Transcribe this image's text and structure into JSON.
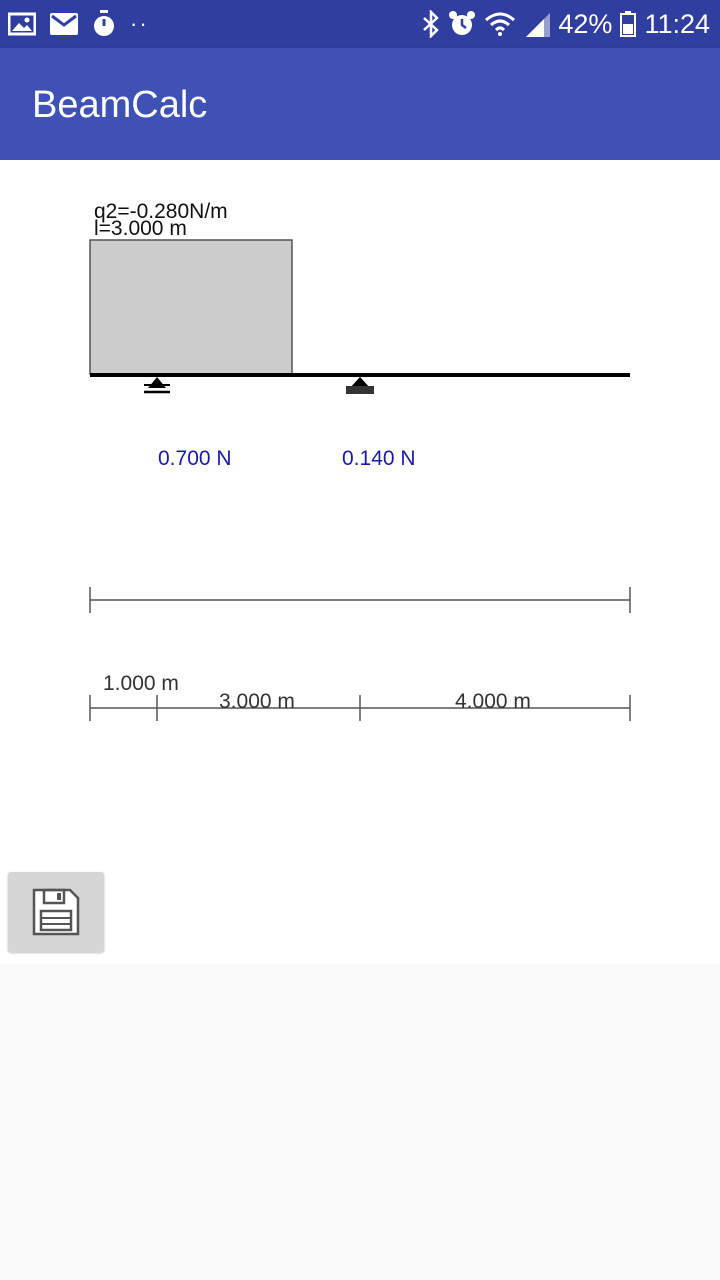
{
  "status_bar": {
    "battery": "42%",
    "time": "11:24",
    "dots": "··",
    "icons_left": [
      "gallery-icon",
      "email-icon",
      "stopwatch-icon"
    ],
    "icons_right": [
      "bluetooth-icon",
      "alarm-icon",
      "wifi-icon",
      "signal-icon",
      "battery-icon"
    ]
  },
  "app_bar": {
    "title": "BeamCalc"
  },
  "beam": {
    "load_label": "q2=-0.280N/m",
    "load_length_label": "l=3.000 m",
    "reactions": [
      "0.700 N",
      "0.140 N"
    ],
    "dimensions": [
      "1.000 m",
      "3.000 m",
      "4.000 m"
    ],
    "colors": {
      "load_fill": "#cccccc",
      "reaction_text": "#1a1aaa",
      "beam": "#000000"
    }
  },
  "toolbar": {
    "save_icon": "floppy-disk-icon"
  }
}
